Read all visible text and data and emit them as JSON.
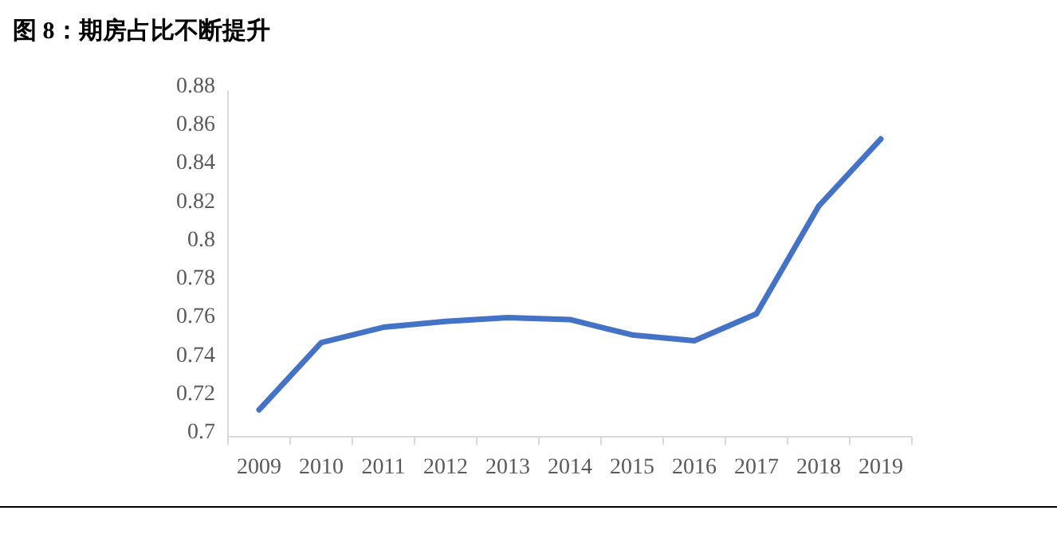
{
  "chart_data": {
    "type": "line",
    "title": "图 8：期房占比不断提升",
    "categories": [
      "2009",
      "2010",
      "2011",
      "2012",
      "2013",
      "2014",
      "2015",
      "2016",
      "2017",
      "2018",
      "2019"
    ],
    "series": [
      {
        "color": "#4472c4",
        "values": [
          0.714,
          0.749,
          0.757,
          0.76,
          0.762,
          0.761,
          0.753,
          0.75,
          0.764,
          0.82,
          0.855
        ]
      }
    ],
    "ylim": [
      0.7,
      0.88
    ],
    "yticks": [
      0.7,
      0.72,
      0.74,
      0.76,
      0.78,
      0.8,
      0.82,
      0.84,
      0.86,
      0.88
    ]
  }
}
